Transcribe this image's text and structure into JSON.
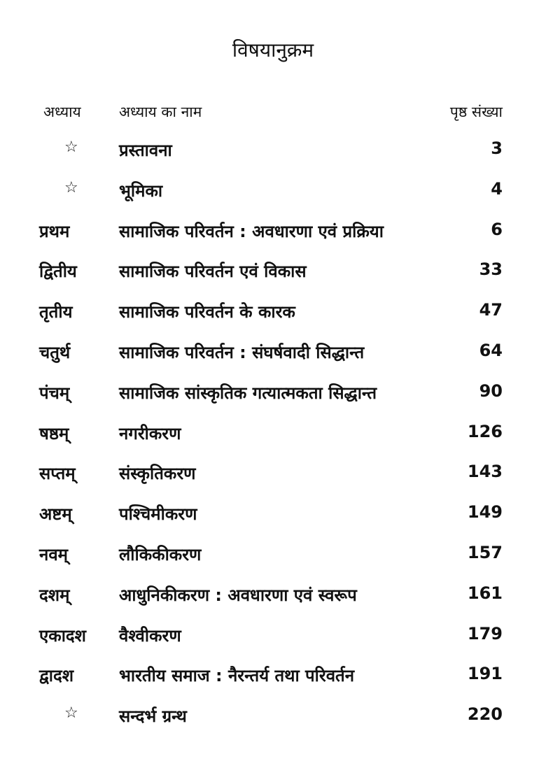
{
  "title": "विषयानुक्रम",
  "header": {
    "chapter": "अध्याय",
    "name": "अध्याय का नाम",
    "page": "पृष्ठ संख्या"
  },
  "rows": [
    {
      "chapter": "☆",
      "name": "प्रस्तावना",
      "page": "3"
    },
    {
      "chapter": "☆",
      "name": "भूमिका",
      "page": "4"
    },
    {
      "chapter": "प्रथम",
      "name": "सामाजिक परिवर्तन : अवधारणा एवं प्रक्रिया",
      "page": "6"
    },
    {
      "chapter": "द्वितीय",
      "name": "सामाजिक परिवर्तन एवं विकास",
      "page": "33"
    },
    {
      "chapter": "तृतीय",
      "name": "सामाजिक परिवर्तन के कारक",
      "page": "47"
    },
    {
      "chapter": "चतुर्थ",
      "name": "सामाजिक परिवर्तन : संघर्षवादी सिद्धान्त",
      "page": "64"
    },
    {
      "chapter": "पंचम्",
      "name": "सामाजिक सांस्कृतिक गत्यात्मकता सिद्धान्त",
      "page": "90"
    },
    {
      "chapter": "षष्ठम्",
      "name": "नगरीकरण",
      "page": "126"
    },
    {
      "chapter": "सप्तम्",
      "name": "संस्कृतिकरण",
      "page": "143"
    },
    {
      "chapter": "अष्टम्",
      "name": "पश्चिमीकरण",
      "page": "149"
    },
    {
      "chapter": "नवम्",
      "name": "लौकिकीकरण",
      "page": "157"
    },
    {
      "chapter": "दशम्",
      "name": "आधुनिकीकरण : अवधारणा एवं स्वरूप",
      "page": "161"
    },
    {
      "chapter": "एकादश",
      "name": "वैश्वीकरण",
      "page": "179"
    },
    {
      "chapter": "द्वादश",
      "name": "भारतीय समाज : नैरन्तर्य तथा परिवर्तन",
      "page": "191"
    },
    {
      "chapter": "☆",
      "name": "सन्दर्भ ग्रन्थ",
      "page": "220"
    }
  ]
}
